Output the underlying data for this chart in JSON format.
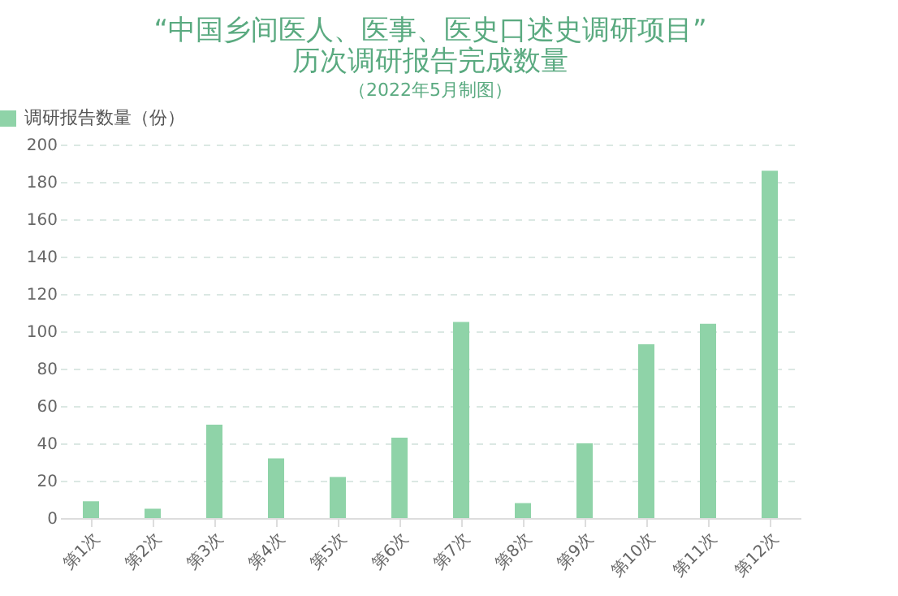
{
  "chart_data": {
    "type": "bar",
    "title": [
      "“中国乡间医人、医事、医史口述史调研项目”",
      "历次调研报告完成数量"
    ],
    "subtitle": "（2022年5月制图）",
    "categories": [
      "第1次",
      "第2次",
      "第3次",
      "第4次",
      "第5次",
      "第6次",
      "第7次",
      "第8次",
      "第9次",
      "第10次",
      "第11次",
      "第12次"
    ],
    "series": [
      {
        "name": "调研报告数量（份）",
        "color": "#8fd3a8",
        "values": [
          9,
          5,
          50,
          32,
          22,
          43,
          105,
          8,
          40,
          93,
          104,
          186
        ]
      }
    ],
    "ylim": [
      0,
      200
    ],
    "yticks": [
      0,
      20,
      40,
      60,
      80,
      100,
      120,
      140,
      160,
      180,
      200
    ],
    "grid": "y",
    "legend": "top left"
  }
}
